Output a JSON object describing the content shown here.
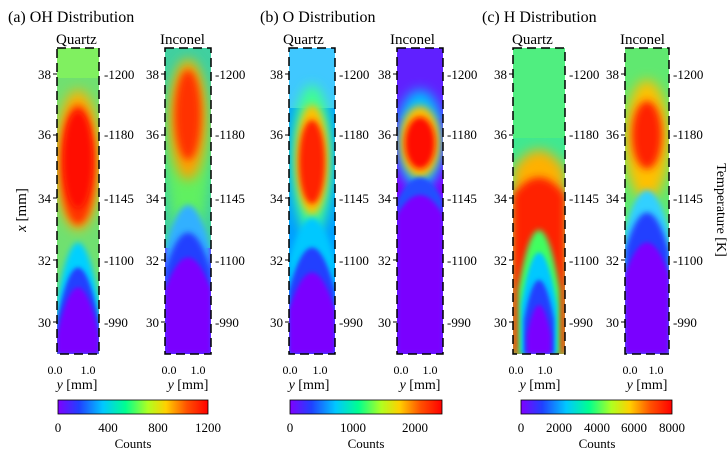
{
  "figure": {
    "panels": [
      {
        "id": "a",
        "title": "(a) OH Distribution",
        "left_label": "Quartz",
        "right_label": "Inconel",
        "colorbar": {
          "ticks": [
            "0",
            "400",
            "800",
            "1200"
          ],
          "label": "Counts"
        }
      },
      {
        "id": "b",
        "title": "(b) O Distribution",
        "left_label": "Quartz",
        "right_label": "Inconel",
        "colorbar": {
          "ticks": [
            "0",
            "1000",
            "2000"
          ],
          "label": "Counts"
        }
      },
      {
        "id": "c",
        "title": "(c) H Distribution",
        "left_label": "Quartz",
        "right_label": "Inconel",
        "colorbar": {
          "ticks": [
            "0",
            "2000",
            "4000",
            "6000",
            "8000"
          ],
          "label": "Counts"
        }
      }
    ],
    "x_axis_label": "x [mm]",
    "x_ticks": [
      "38",
      "36",
      "34",
      "32",
      "30"
    ],
    "y_axis_label": "y [mm]",
    "y_ticks": [
      "0.0",
      "1.0"
    ],
    "temperature_label": "Temperature [K]",
    "temperature_ticks": [
      "1200",
      "1180",
      "1145",
      "1100",
      "990"
    ],
    "colormap": [
      "#7f00ff",
      "#2040ff",
      "#00c8ff",
      "#00ff90",
      "#b0ff20",
      "#ffd000",
      "#ff5000",
      "#ff0000"
    ]
  }
}
